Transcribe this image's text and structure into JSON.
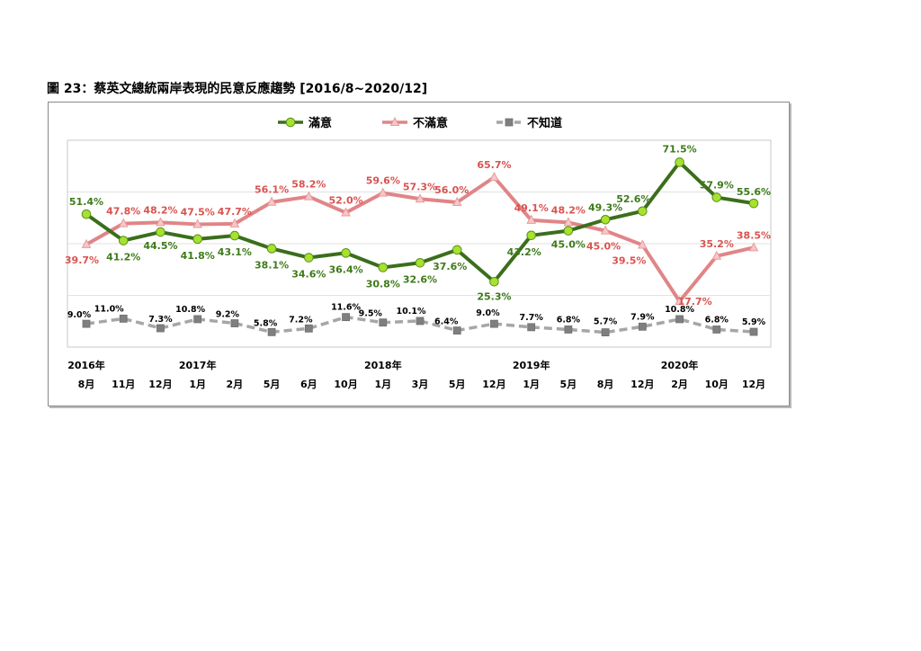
{
  "figure": {
    "title": "圖 23：蔡英文總統兩岸表現的民意反應趨勢 [2016/8~2020/12]"
  },
  "chart_data": {
    "type": "line",
    "legend_position": "top",
    "grid": true,
    "ylim": [
      0,
      80
    ],
    "categories": [
      "8月",
      "11月",
      "12月",
      "1月",
      "2月",
      "5月",
      "6月",
      "10月",
      "1月",
      "3月",
      "5月",
      "12月",
      "1月",
      "5月",
      "8月",
      "12月",
      "2月",
      "10月",
      "12月"
    ],
    "year_labels": [
      {
        "index": 0,
        "label": "2016年"
      },
      {
        "index": 3,
        "label": "2017年"
      },
      {
        "index": 8,
        "label": "2018年"
      },
      {
        "index": 12,
        "label": "2019年"
      },
      {
        "index": 16,
        "label": "2020年"
      }
    ],
    "series": [
      {
        "name": "滿意",
        "color": "#3b6e1c",
        "marker_color": "#a6e22e",
        "marker": "circle",
        "dashed": false,
        "label_color": "#3e7a1a",
        "values": [
          51.4,
          41.2,
          44.5,
          41.8,
          43.1,
          38.1,
          34.6,
          36.4,
          30.8,
          32.6,
          37.6,
          25.3,
          43.2,
          45.0,
          49.3,
          52.6,
          71.5,
          57.9,
          55.6
        ],
        "labels": [
          "51.4%",
          "41.2%",
          "44.5%",
          "41.8%",
          "43.1%",
          "38.1%",
          "34.6%",
          "36.4%",
          "30.8%",
          "32.6%",
          "37.6%",
          "25.3%",
          "43.2%",
          "45.0%",
          "49.3%",
          "52.6%",
          "71.5%",
          "57.9%",
          "55.6%"
        ]
      },
      {
        "name": "不滿意",
        "color": "#e08587",
        "marker_color": "#f7c7c8",
        "marker": "triangle",
        "dashed": false,
        "label_color": "#d9534f",
        "values": [
          39.7,
          47.8,
          48.2,
          47.5,
          47.7,
          56.1,
          58.2,
          52.0,
          59.6,
          57.3,
          56.0,
          65.7,
          49.1,
          48.2,
          45.0,
          39.5,
          17.7,
          35.2,
          38.5
        ],
        "labels": [
          "39.7%",
          "47.8%",
          "48.2%",
          "47.5%",
          "47.7%",
          "56.1%",
          "58.2%",
          "52.0%",
          "59.6%",
          "57.3%",
          "56.0%",
          "65.7%",
          "49.1%",
          "48.2%",
          "45.0%",
          "39.5%",
          "17.7%",
          "35.2%",
          "38.5%"
        ]
      },
      {
        "name": "不知道",
        "color": "#a6a6a6",
        "marker_color": "#7f7f7f",
        "marker": "square",
        "dashed": true,
        "label_color": "#000000",
        "values": [
          9.0,
          11.0,
          7.3,
          10.8,
          9.2,
          5.8,
          7.2,
          11.6,
          9.5,
          10.1,
          6.4,
          9.0,
          7.7,
          6.8,
          5.7,
          7.9,
          10.8,
          6.8,
          5.9
        ],
        "labels": [
          "9.0%",
          "11.0%",
          "7.3%",
          "10.8%",
          "9.2%",
          "5.8%",
          "7.2%",
          "11.6%",
          "9.5%",
          "10.1%",
          "6.4%",
          "9.0%",
          "7.7%",
          "6.8%",
          "5.7%",
          "7.9%",
          "10.8%",
          "6.8%",
          "5.9%"
        ]
      }
    ]
  }
}
